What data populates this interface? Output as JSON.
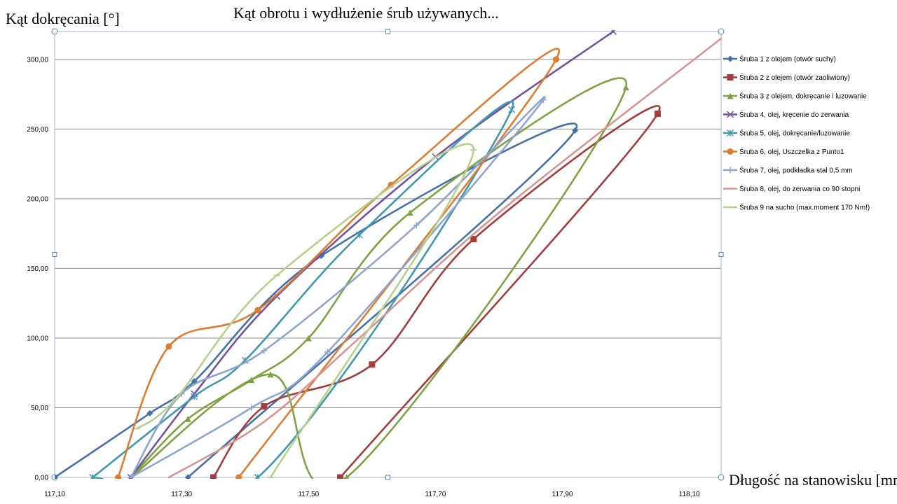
{
  "chart_data": {
    "type": "scatter",
    "title": "Kąt obrotu i wydłużenie śrub używanych...",
    "xlabel": "Długość na stanowisku [mm]",
    "ylabel": "Kąt dokręcania [°]",
    "xlim": [
      117.1,
      118.15
    ],
    "ylim": [
      0,
      320
    ],
    "x_ticks": [
      "117,10",
      "117,30",
      "117,50",
      "117,70",
      "117,90",
      "118,10"
    ],
    "x_tick_values": [
      117.1,
      117.3,
      117.5,
      117.7,
      117.9,
      118.1
    ],
    "y_ticks": [
      "0,00",
      "50,00",
      "100,00",
      "150,00",
      "200,00",
      "250,00",
      "300,00"
    ],
    "y_tick_values": [
      0,
      50,
      100,
      150,
      200,
      250,
      300
    ],
    "grid": "horizontal",
    "legend_position": "right",
    "series": [
      {
        "name": "Śruba 1 z olejem (otwór suchy)",
        "color": "#4472a8",
        "marker": "diamond",
        "points": [
          [
            117.1,
            0
          ],
          [
            117.25,
            46
          ],
          [
            117.32,
            69
          ],
          [
            117.52,
            159
          ],
          [
            117.92,
            249
          ],
          [
            117.31,
            0
          ]
        ]
      },
      {
        "name": "Śruba 2 z olejem (otwór zaoliwiony)",
        "color": "#a33d3d",
        "marker": "square",
        "points": [
          [
            117.35,
            0
          ],
          [
            117.43,
            51
          ],
          [
            117.6,
            81
          ],
          [
            117.76,
            171
          ],
          [
            118.05,
            261
          ],
          [
            117.55,
            0
          ]
        ]
      },
      {
        "name": "Śruba 3 z olejem,  dokręcanie i luzowanie",
        "color": "#7ea341",
        "marker": "triangle",
        "points": [
          [
            117.22,
            0
          ],
          [
            117.31,
            42
          ],
          [
            117.41,
            70
          ],
          [
            117.5,
            100
          ],
          [
            117.66,
            190
          ],
          [
            118.0,
            280
          ],
          [
            117.56,
            0
          ],
          [
            117.44,
            74
          ],
          [
            117.22,
            0
          ]
        ]
      },
      {
        "name": "Śruba 4, olej, kręcenie do zerwania",
        "color": "#7152a1",
        "marker": "x",
        "points": [
          [
            117.22,
            0
          ],
          [
            117.32,
            60
          ],
          [
            117.45,
            130
          ],
          [
            117.7,
            230
          ],
          [
            117.98,
            320
          ]
        ]
      },
      {
        "name": "Śruba 5, olej, dokręcanie/luzowanie",
        "color": "#3f98ad",
        "marker": "asterisk",
        "points": [
          [
            117.16,
            0
          ],
          [
            117.32,
            58
          ],
          [
            117.4,
            84
          ],
          [
            117.58,
            174
          ],
          [
            117.82,
            264
          ],
          [
            117.42,
            0
          ],
          [
            117.16,
            0
          ]
        ]
      },
      {
        "name": "Śruba 6, olej, Uszczelka z Punto1",
        "color": "#e07b2e",
        "marker": "circle",
        "points": [
          [
            117.2,
            0
          ],
          [
            117.28,
            94
          ],
          [
            117.42,
            120
          ],
          [
            117.63,
            210
          ],
          [
            117.89,
            300
          ],
          [
            117.39,
            0
          ]
        ]
      },
      {
        "name": "Śruba 7, olej, podkładka stal 0,5 mm",
        "color": "#8da6d1",
        "marker": "plus",
        "points": [
          [
            117.22,
            0
          ],
          [
            117.3,
            60
          ],
          [
            117.43,
            91
          ],
          [
            117.67,
            181
          ],
          [
            117.87,
            271
          ],
          [
            117.53,
            90
          ],
          [
            117.41,
            50
          ],
          [
            117.22,
            0
          ]
        ]
      },
      {
        "name": "Śruba 8, olej, do zerwania co 90 stopni",
        "color": "#d99393",
        "marker": "none",
        "points": [
          [
            117.28,
            0
          ],
          [
            117.43,
            40
          ],
          [
            117.58,
            100
          ],
          [
            117.8,
            190
          ],
          [
            118.15,
            315
          ]
        ]
      },
      {
        "name": "Śruba 9 na sucho (max.moment  170 Nm!)",
        "color": "#b5d18c",
        "marker": "dash",
        "points": [
          [
            117.23,
            35
          ],
          [
            117.29,
            56
          ],
          [
            117.45,
            145
          ],
          [
            117.76,
            235
          ],
          [
            117.44,
            0
          ]
        ]
      }
    ]
  }
}
